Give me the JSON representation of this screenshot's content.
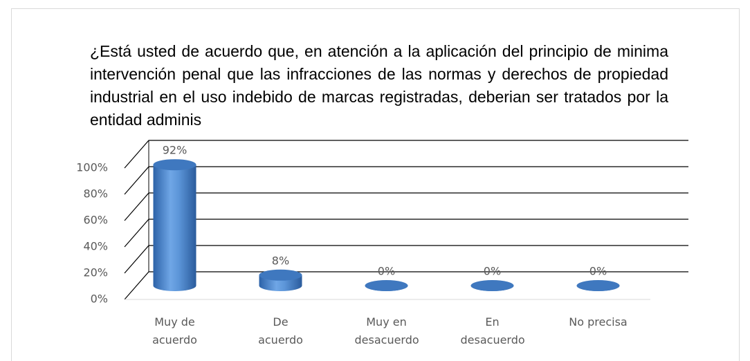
{
  "chart_data": {
    "type": "bar",
    "title": "¿Está usted de acuerdo que, en atención a la aplicación del principio de minima intervención penal que las infracciones de las normas y derechos de propiedad industrial en el uso indebido de marcas registradas, deberian ser tratados por la entidad adminis",
    "categories": [
      "Muy de acuerdo",
      "De acuerdo",
      "Muy en desacuerdo",
      "En desacuerdo",
      "No precisa"
    ],
    "values": [
      92,
      8,
      0,
      0,
      0
    ],
    "value_labels": [
      "92%",
      "8%",
      "0%",
      "0%",
      "0%"
    ],
    "color": "#4a86cf",
    "ylim": [
      0,
      100
    ],
    "yticks": [
      {
        "value": 0,
        "label": "0%"
      },
      {
        "value": 20,
        "label": "20%"
      },
      {
        "value": 40,
        "label": "40%"
      },
      {
        "value": 60,
        "label": "60%"
      },
      {
        "value": 80,
        "label": "80%"
      },
      {
        "value": 100,
        "label": "100%"
      }
    ],
    "grid": true
  }
}
